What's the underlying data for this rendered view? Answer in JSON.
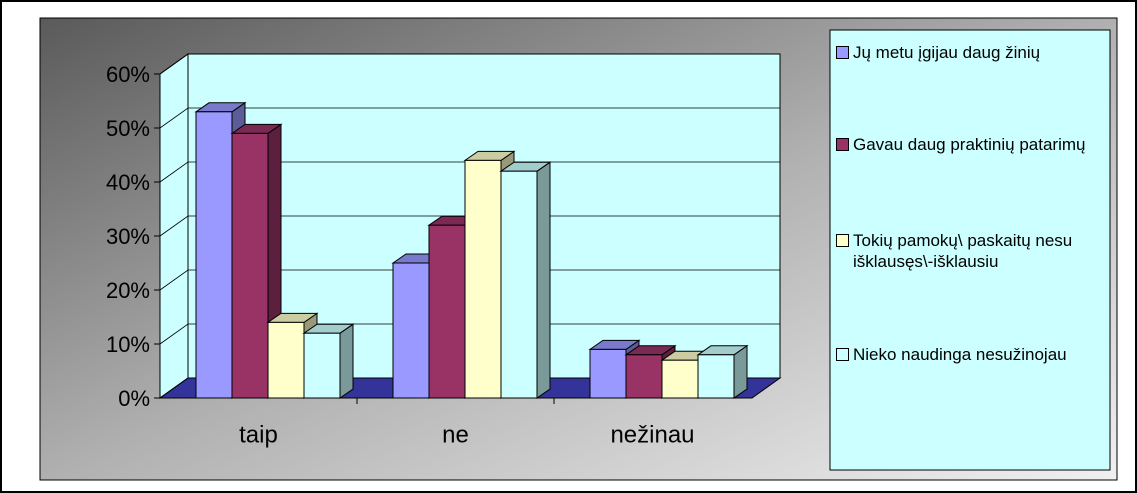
{
  "chart_data": {
    "type": "bar3d",
    "categories": [
      "taip",
      "ne",
      "nežinau"
    ],
    "series": [
      {
        "name": "Jų metu įgijau daug žinių",
        "color": "#9999ff",
        "values": [
          53,
          25,
          9
        ]
      },
      {
        "name": "Gavau daug praktinių patarimų",
        "color": "#993366",
        "values": [
          49,
          32,
          8
        ]
      },
      {
        "name": "Tokių pamokų\\ paskaitų nesu išklausęs\\-išklausiu",
        "color": "#ffffcc",
        "values": [
          14,
          44,
          7
        ]
      },
      {
        "name": "Nieko naudinga nesužinojau",
        "color": "#ccffff",
        "values": [
          12,
          42,
          8
        ]
      }
    ],
    "ylim": [
      0,
      60
    ],
    "yticks": [
      {
        "value": 0,
        "label": "0%"
      },
      {
        "value": 10,
        "label": "10%"
      },
      {
        "value": 20,
        "label": "20%"
      },
      {
        "value": 30,
        "label": "30%"
      },
      {
        "value": 40,
        "label": "40%"
      },
      {
        "value": 50,
        "label": "50%"
      },
      {
        "value": 60,
        "label": "60%"
      }
    ],
    "grid": true,
    "legend": "right"
  }
}
